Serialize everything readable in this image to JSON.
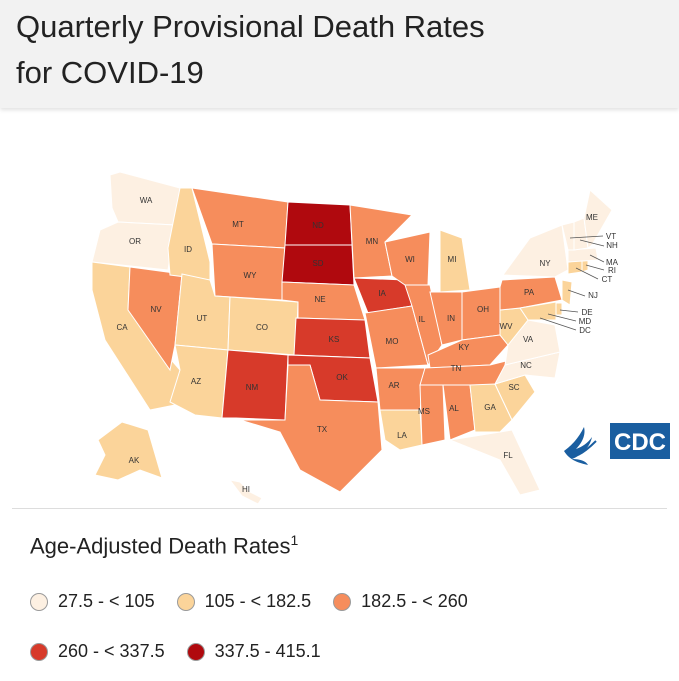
{
  "header": {
    "title_line1": "Quarterly Provisional Death Rates",
    "title_line2": "for COVID-19"
  },
  "map": {
    "colors": {
      "c1": "#fdf0e2",
      "c2": "#fbd49a",
      "c3": "#f68d5c",
      "c4": "#d73a2a",
      "c5": "#b0090e"
    },
    "states": [
      {
        "abbr": "WA",
        "cls": "c1"
      },
      {
        "abbr": "OR",
        "cls": "c1"
      },
      {
        "abbr": "CA",
        "cls": "c2"
      },
      {
        "abbr": "NV",
        "cls": "c3"
      },
      {
        "abbr": "ID",
        "cls": "c2"
      },
      {
        "abbr": "MT",
        "cls": "c3"
      },
      {
        "abbr": "WY",
        "cls": "c3"
      },
      {
        "abbr": "UT",
        "cls": "c2"
      },
      {
        "abbr": "CO",
        "cls": "c2"
      },
      {
        "abbr": "AZ",
        "cls": "c2"
      },
      {
        "abbr": "NM",
        "cls": "c4"
      },
      {
        "abbr": "ND",
        "cls": "c5"
      },
      {
        "abbr": "SD",
        "cls": "c5"
      },
      {
        "abbr": "NE",
        "cls": "c3"
      },
      {
        "abbr": "KS",
        "cls": "c4"
      },
      {
        "abbr": "OK",
        "cls": "c4"
      },
      {
        "abbr": "TX",
        "cls": "c3"
      },
      {
        "abbr": "MN",
        "cls": "c3"
      },
      {
        "abbr": "IA",
        "cls": "c4"
      },
      {
        "abbr": "MO",
        "cls": "c3"
      },
      {
        "abbr": "AR",
        "cls": "c3"
      },
      {
        "abbr": "LA",
        "cls": "c2"
      },
      {
        "abbr": "WI",
        "cls": "c3"
      },
      {
        "abbr": "IL",
        "cls": "c3"
      },
      {
        "abbr": "MI",
        "cls": "c2"
      },
      {
        "abbr": "IN",
        "cls": "c3"
      },
      {
        "abbr": "OH",
        "cls": "c3"
      },
      {
        "abbr": "KY",
        "cls": "c3"
      },
      {
        "abbr": "TN",
        "cls": "c3"
      },
      {
        "abbr": "MS",
        "cls": "c3"
      },
      {
        "abbr": "AL",
        "cls": "c3"
      },
      {
        "abbr": "GA",
        "cls": "c2"
      },
      {
        "abbr": "FL",
        "cls": "c1"
      },
      {
        "abbr": "SC",
        "cls": "c2"
      },
      {
        "abbr": "NC",
        "cls": "c1"
      },
      {
        "abbr": "VA",
        "cls": "c1"
      },
      {
        "abbr": "WV",
        "cls": "c2"
      },
      {
        "abbr": "PA",
        "cls": "c3"
      },
      {
        "abbr": "NY",
        "cls": "c1"
      },
      {
        "abbr": "ME",
        "cls": "c1"
      },
      {
        "abbr": "VT",
        "cls": "c1"
      },
      {
        "abbr": "NH",
        "cls": "c1"
      },
      {
        "abbr": "MA",
        "cls": "c1"
      },
      {
        "abbr": "RI",
        "cls": "c2"
      },
      {
        "abbr": "CT",
        "cls": "c2"
      },
      {
        "abbr": "NJ",
        "cls": "c2"
      },
      {
        "abbr": "DE",
        "cls": "c2"
      },
      {
        "abbr": "MD",
        "cls": "c2"
      },
      {
        "abbr": "DC",
        "cls": "c2"
      },
      {
        "abbr": "AK",
        "cls": "c2"
      },
      {
        "abbr": "HI",
        "cls": "c1"
      }
    ]
  },
  "legend": {
    "title": "Age-Adjusted Death Rates",
    "footnote": "1",
    "items": [
      {
        "label": "27.5 - < 105",
        "color": "#fdf0e2"
      },
      {
        "label": "105 - < 182.5",
        "color": "#fbd49a"
      },
      {
        "label": "182.5 - < 260",
        "color": "#f68d5c"
      },
      {
        "label": "260 - < 337.5",
        "color": "#d73a2a"
      },
      {
        "label": "337.5 - 415.1",
        "color": "#b0090e"
      }
    ]
  },
  "logo": {
    "text": "CDC",
    "color": "#1a5ea0",
    "icon": "hhs-eagle-icon"
  }
}
